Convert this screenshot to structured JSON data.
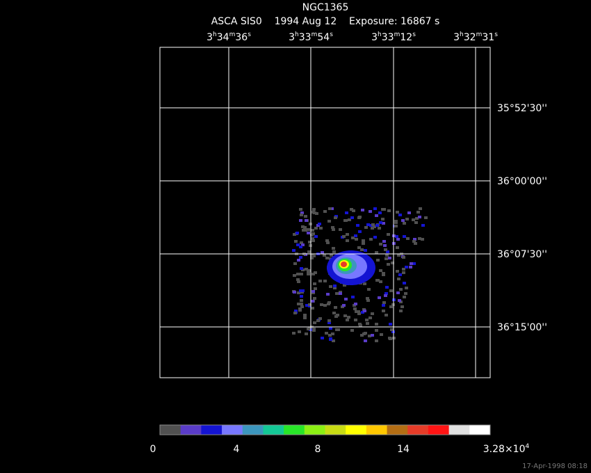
{
  "header": {
    "title": "NGC1365",
    "subtitle": "ASCA SIS0    1994 Aug 12    Exposure: 16867 s"
  },
  "ra_ticks": [
    [
      {
        "text": "3"
      },
      {
        "sup": "h"
      },
      {
        "text": "34"
      },
      {
        "sup": "m"
      },
      {
        "text": "36"
      },
      {
        "sup": "s"
      }
    ],
    [
      {
        "text": "3"
      },
      {
        "sup": "h"
      },
      {
        "text": "33"
      },
      {
        "sup": "m"
      },
      {
        "text": "54"
      },
      {
        "sup": "s"
      }
    ],
    [
      {
        "text": "3"
      },
      {
        "sup": "h"
      },
      {
        "text": "33"
      },
      {
        "sup": "m"
      },
      {
        "text": "12"
      },
      {
        "sup": "s"
      }
    ],
    [
      {
        "text": "3"
      },
      {
        "sup": "h"
      },
      {
        "text": "32"
      },
      {
        "sup": "m"
      },
      {
        "text": "31"
      },
      {
        "sup": "s"
      }
    ]
  ],
  "dec_ticks": [
    "35°52'30''",
    "36°00'00''",
    "36°07'30''",
    "36°15'00''"
  ],
  "colorbar": {
    "colors": [
      "#505050",
      "#5a3cc8",
      "#1414d2",
      "#7878ff",
      "#3c96be",
      "#14c896",
      "#28e628",
      "#8cf014",
      "#c8dc14",
      "#ffff00",
      "#ffc800",
      "#b46e14",
      "#e63c28",
      "#ff1414",
      "#e1e1e1",
      "#ffffff"
    ],
    "labels": [
      [
        {
          "text": "0"
        }
      ],
      [
        {
          "text": "4"
        }
      ],
      [
        {
          "text": "8"
        }
      ],
      [
        {
          "text": "14"
        }
      ],
      [
        {
          "text": "3.28×10"
        },
        {
          "sup": "4"
        }
      ]
    ]
  },
  "timestamp": "17-Apr-1998 08:18"
}
